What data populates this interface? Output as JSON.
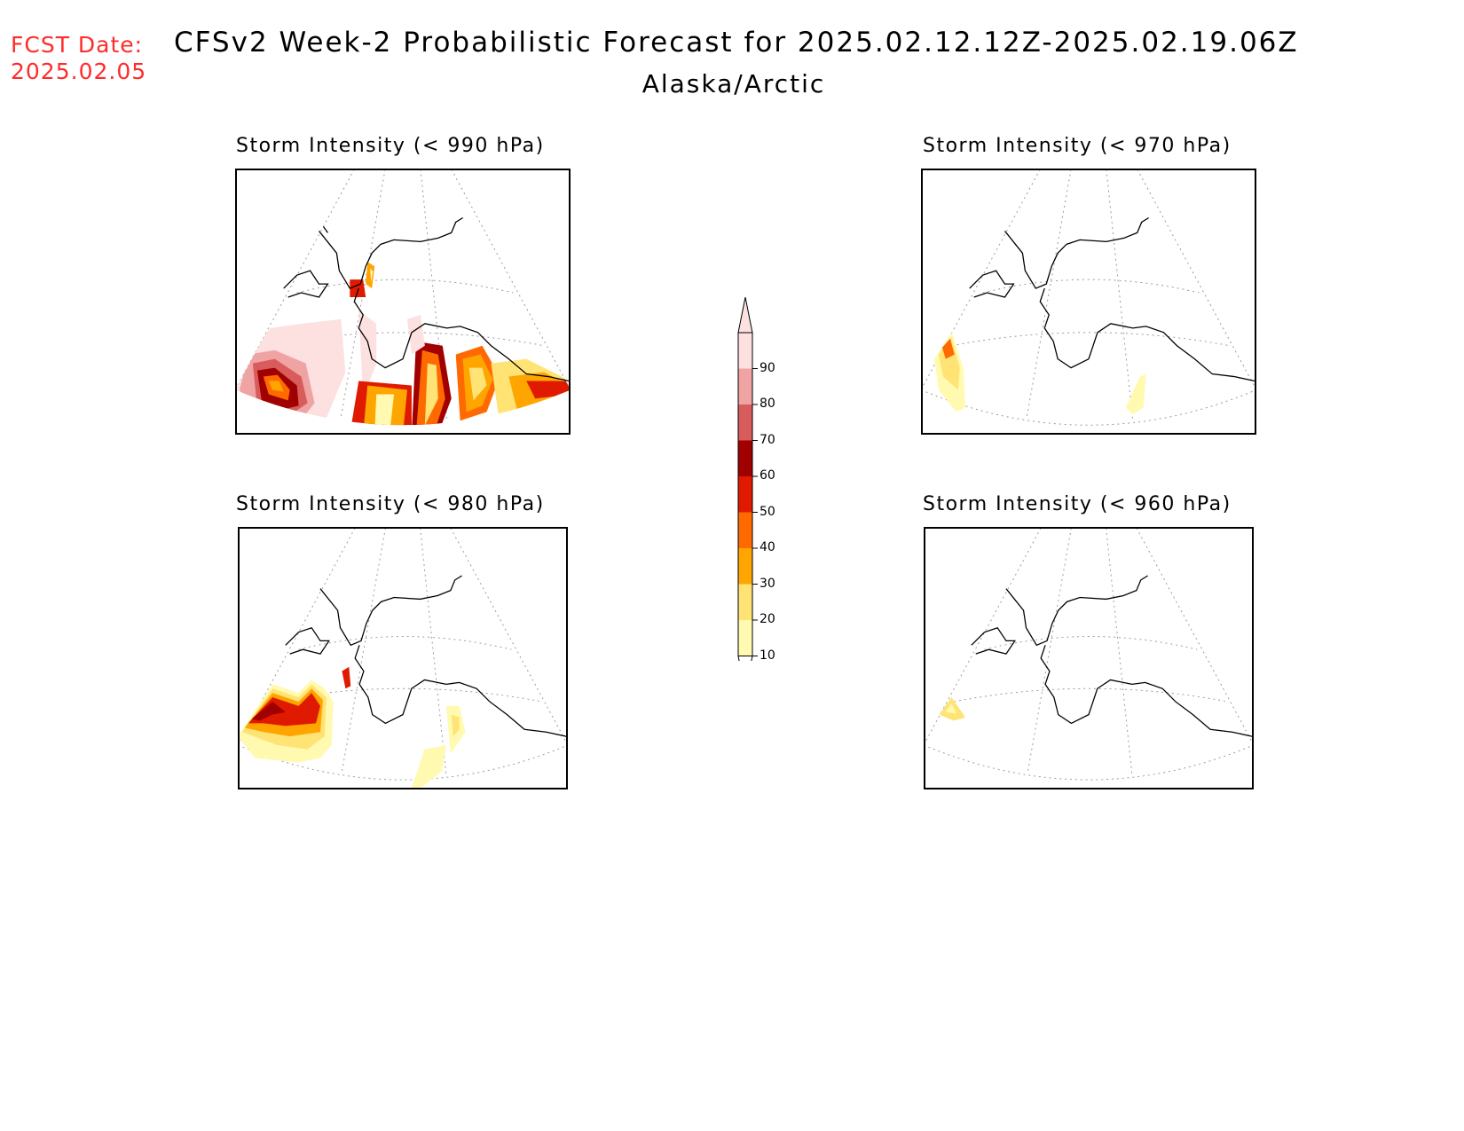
{
  "fcst_date": {
    "label": "FCST Date:",
    "value": "2025.02.05"
  },
  "title": "CFSv2 Week-2 Probabilistic Forecast for 2025.02.12.12Z-2025.02.19.06Z",
  "region": "Alaska/Arctic",
  "panels": [
    {
      "id": "p990",
      "title": "Storm Intensity (< 990 hPa)"
    },
    {
      "id": "p970",
      "title": "Storm Intensity (< 970 hPa)"
    },
    {
      "id": "p980",
      "title": "Storm Intensity (< 980 hPa)"
    },
    {
      "id": "p960",
      "title": "Storm Intensity (< 960 hPa)"
    }
  ],
  "colorbar": {
    "levels": [
      "10",
      "20",
      "30",
      "40",
      "50",
      "60",
      "70",
      "80",
      "90"
    ],
    "colors": [
      "#fffab0",
      "#ffe375",
      "#ffa500",
      "#ff6a00",
      "#e01a00",
      "#a00000",
      "#d85c5c",
      "#f0a3a3",
      "#fde0e0"
    ]
  }
}
